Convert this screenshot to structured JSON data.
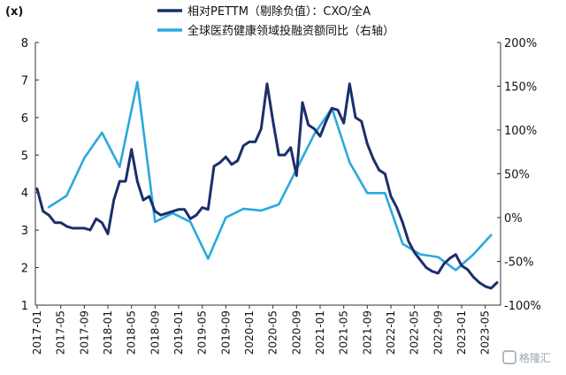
{
  "chart_data": {
    "type": "line",
    "y_unit_label": "(x)",
    "left_axis": {
      "ylim": [
        1,
        8
      ],
      "ticks": [
        "1",
        "2",
        "3",
        "4",
        "5",
        "6",
        "7",
        "8"
      ]
    },
    "right_axis": {
      "ylim": [
        -100,
        200
      ],
      "ticks": [
        "-100%",
        "-50%",
        "0%",
        "50%",
        "100%",
        "150%",
        "200%"
      ]
    },
    "x_tick_labels": [
      "2017-01",
      "2017-05",
      "2017-09",
      "2018-01",
      "2018-05",
      "2018-09",
      "2019-01",
      "2019-05",
      "2019-09",
      "2020-01",
      "2020-05",
      "2020-09",
      "2021-01",
      "2021-05",
      "2021-09",
      "2022-01",
      "2022-05",
      "2022-09",
      "2023-01",
      "2023-05"
    ],
    "grid": false,
    "legend_position": "top",
    "series": [
      {
        "name": "相对PETTM（剔除负值）：CXO/全A",
        "axis": "left",
        "color": "#1a2f6b",
        "x": [
          "2017-01",
          "2017-02",
          "2017-03",
          "2017-04",
          "2017-05",
          "2017-06",
          "2017-07",
          "2017-08",
          "2017-09",
          "2017-10",
          "2017-11",
          "2017-12",
          "2018-01",
          "2018-02",
          "2018-03",
          "2018-04",
          "2018-05",
          "2018-06",
          "2018-07",
          "2018-08",
          "2018-09",
          "2018-10",
          "2018-11",
          "2018-12",
          "2019-01",
          "2019-02",
          "2019-03",
          "2019-04",
          "2019-05",
          "2019-06",
          "2019-07",
          "2019-08",
          "2019-09",
          "2019-10",
          "2019-11",
          "2019-12",
          "2020-01",
          "2020-02",
          "2020-03",
          "2020-04",
          "2020-05",
          "2020-06",
          "2020-07",
          "2020-08",
          "2020-09",
          "2020-10",
          "2020-11",
          "2020-12",
          "2021-01",
          "2021-02",
          "2021-03",
          "2021-04",
          "2021-05",
          "2021-06",
          "2021-07",
          "2021-08",
          "2021-09",
          "2021-10",
          "2021-11",
          "2021-12",
          "2022-01",
          "2022-02",
          "2022-03",
          "2022-04",
          "2022-05",
          "2022-06",
          "2022-07",
          "2022-08",
          "2022-09",
          "2022-10",
          "2022-11",
          "2022-12",
          "2023-01",
          "2023-02",
          "2023-03",
          "2023-04",
          "2023-05",
          "2023-06",
          "2023-07"
        ],
        "y": [
          4.1,
          3.5,
          3.4,
          3.2,
          3.2,
          3.1,
          3.05,
          3.05,
          3.05,
          3.0,
          3.3,
          3.2,
          2.9,
          3.8,
          4.3,
          4.3,
          5.15,
          4.3,
          3.8,
          3.9,
          3.5,
          3.4,
          3.45,
          3.5,
          3.55,
          3.55,
          3.3,
          3.4,
          3.6,
          3.55,
          4.7,
          4.8,
          4.95,
          4.75,
          4.85,
          5.25,
          5.35,
          5.35,
          5.7,
          6.9,
          5.9,
          5.0,
          5.0,
          5.2,
          4.45,
          6.4,
          5.8,
          5.7,
          5.5,
          5.9,
          6.25,
          6.2,
          5.85,
          6.9,
          6.0,
          5.9,
          5.3,
          4.9,
          4.6,
          4.5,
          3.9,
          3.6,
          3.2,
          2.7,
          2.4,
          2.2,
          2.0,
          1.9,
          1.85,
          2.1,
          2.25,
          2.35,
          2.05,
          1.95,
          1.75,
          1.6,
          1.5,
          1.45,
          1.6
        ]
      },
      {
        "name": "全球医药健康领域投融资额同比（右轴）",
        "axis": "right",
        "color": "#2aa9dd",
        "x": [
          "2017-03",
          "2017-06",
          "2017-09",
          "2017-12",
          "2018-03",
          "2018-06",
          "2018-09",
          "2018-12",
          "2019-03",
          "2019-06",
          "2019-09",
          "2019-12",
          "2020-03",
          "2020-06",
          "2020-09",
          "2020-12",
          "2021-03",
          "2021-06",
          "2021-09",
          "2021-12",
          "2022-03",
          "2022-06",
          "2022-09",
          "2022-12",
          "2023-03",
          "2023-06"
        ],
        "y": [
          12,
          25,
          68,
          97,
          58,
          155,
          -5,
          5,
          -5,
          -47,
          0,
          10,
          8,
          15,
          55,
          95,
          125,
          63,
          28,
          28,
          -30,
          -42,
          -45,
          -60,
          -42,
          -20
        ]
      }
    ]
  },
  "watermark": "格隆汇"
}
